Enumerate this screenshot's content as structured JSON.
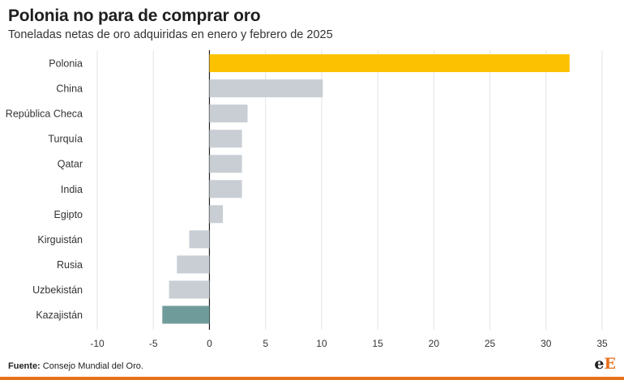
{
  "chart_data": {
    "type": "bar",
    "orientation": "horizontal",
    "title": "Polonia no para de comprar oro",
    "subtitle": "Toneladas netas de oro adquiridas en enero y febrero de 2025",
    "categories": [
      "Polonia",
      "China",
      "República Checa",
      "Turquía",
      "Qatar",
      "India",
      "Egipto",
      "Kirguistán",
      "Rusia",
      "Uzbekistán",
      "Kazajistán"
    ],
    "values": [
      32.1,
      10.1,
      3.4,
      2.9,
      2.9,
      2.9,
      1.2,
      -1.8,
      -2.9,
      -3.6,
      -4.2
    ],
    "colors": [
      "#fcc100",
      "#c8ced4",
      "#c8ced4",
      "#c8ced4",
      "#c8ced4",
      "#c8ced4",
      "#c8ced4",
      "#c8ced4",
      "#c8ced4",
      "#c8ced4",
      "#6f9c9a"
    ],
    "xlim": [
      -10,
      35
    ],
    "xticks": [
      "-10",
      "-5",
      "0",
      "5",
      "10",
      "15",
      "20",
      "25",
      "30",
      "35"
    ],
    "grid": true
  },
  "footer": {
    "source_label": "Fuente:",
    "source_text": "Consejo Mundial del Oro."
  },
  "logo": {
    "part1": "e",
    "part2": "E"
  }
}
